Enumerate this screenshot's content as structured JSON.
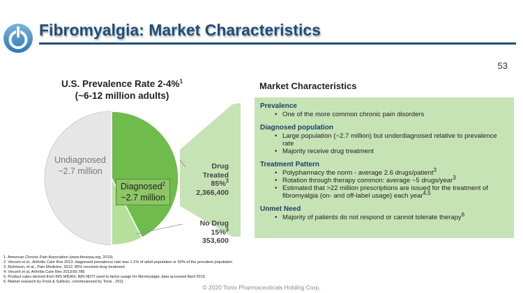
{
  "header": {
    "logo_icon": "power-button-logo-icon",
    "title": "Fibromyalgia: Market Characteristics",
    "page_number": "53"
  },
  "chart_title": {
    "line1": "U.S. Prevalence Rate 2-4%",
    "line1_sup": "1",
    "line2": "(~6-12 million adults)"
  },
  "chart_data": {
    "type": "pie",
    "title": "U.S. Prevalence Rate 2-4% (~6-12 million adults)",
    "slices": [
      {
        "name": "Drug Treated",
        "percent_of_diagnosed": 85,
        "value": 2366400,
        "color": "#6fbc4c"
      },
      {
        "name": "No Drug",
        "percent_of_diagnosed": 15,
        "value": 353600,
        "color": "#b4e09a"
      },
      {
        "name": "Undiagnosed",
        "value_label": "~2.7 million",
        "share_of_total": 0.5,
        "color": "#e6e6e6"
      }
    ],
    "labels": {
      "undiagnosed": {
        "line1": "Undiagnosed",
        "line2": "~2.7 million"
      },
      "diagnosed": {
        "line1": "Diagnosed",
        "sup": "2",
        "line2": "~2.7 million"
      },
      "drug_treated": {
        "line1": "Drug",
        "line2": "Treated",
        "line3": "85%",
        "sup": "3",
        "line4": "2,366,400"
      },
      "no_drug": {
        "line1": "No Drug",
        "line2": "15%",
        "sup": "3",
        "line3": "353,600"
      }
    }
  },
  "market": {
    "heading": "Market Characteristics",
    "sections": [
      {
        "title": "Prevalence",
        "bullets": [
          {
            "text": "One of the more common chronic pain disorders",
            "sup": ""
          }
        ]
      },
      {
        "title": "Diagnosed population",
        "bullets": [
          {
            "text": "Large population (~2.7 million) but underdiagnosed relative to prevalence rate",
            "sup": ""
          },
          {
            "text": "Majority receive drug treatment",
            "sup": ""
          }
        ]
      },
      {
        "title": "Treatment Pattern",
        "bullets": [
          {
            "text": "Polypharmacy the norm - average 2.6 drugs/patient",
            "sup": "3"
          },
          {
            "text": "Rotation through therapy common: average ~5 drugs/year",
            "sup": "3"
          },
          {
            "text": "Estimated that >22 million prescriptions are issued for the treatment of fibromyalgia (on- and off-label usage) each year",
            "sup": "4,5"
          }
        ]
      },
      {
        "title": "Unmet Need",
        "bullets": [
          {
            "text": "Majority of patients do not respond or cannot tolerate therapy",
            "sup": "6"
          }
        ]
      }
    ]
  },
  "footnotes": [
    "1. American Chronic Pain Association (www.theacpa.org, 2019)",
    "2. Vincent et al., Arthritis Care Res 2013; diagnosed prevalence rate was 1.1% of adult population or 50% of the prevalent population",
    "3. Robinson, et al., Pain Medicine, 2012; 85% received drug treatment",
    "4. Vincent et al, Arthritis Care Res 2013;65:786",
    "5. Product sales derived from IMS MIDAS; IMS NDTI used to factor usage for fibromyalgia; data accessed April 2015.",
    "6. Market research by Frost & Sullivan, commissioned by Tonix , 2011"
  ],
  "copyright": "© 2020 Tonix Pharmaceuticals Holding Corp."
}
